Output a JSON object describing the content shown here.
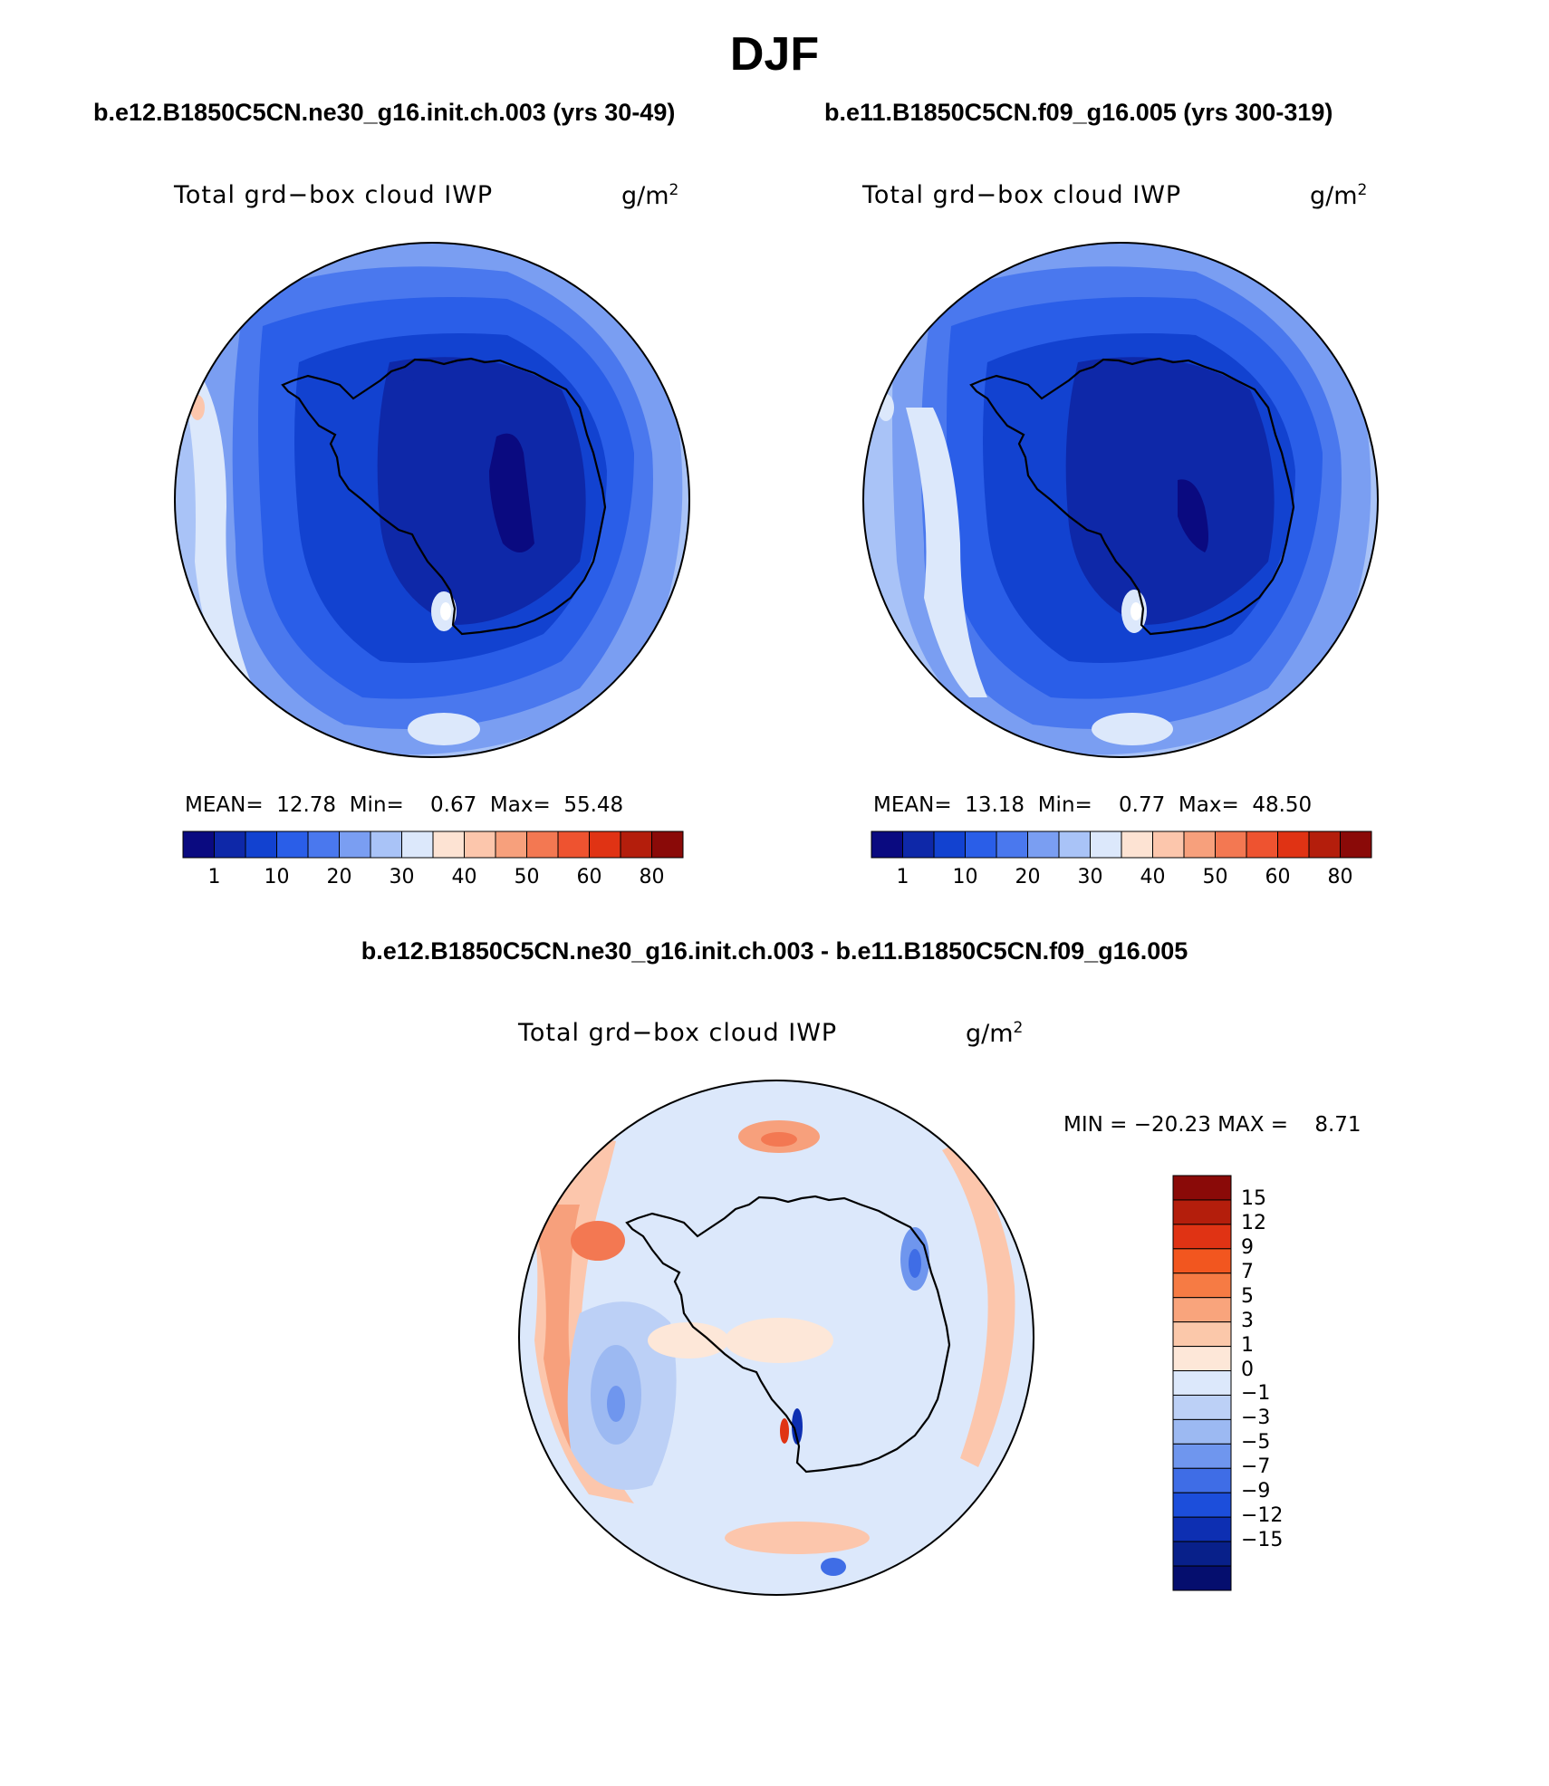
{
  "page": {
    "title": "DJF"
  },
  "panels": [
    {
      "case_title": "b.e12.B1850C5CN.ne30_g16.init.ch.003 (yrs 30-49)",
      "variable": "Total grd−box cloud IWP",
      "units": "g/m",
      "units_exp": "2",
      "stats": {
        "mean_label": "MEAN=",
        "mean": "12.78",
        "min_label": "Min=",
        "min": "0.67",
        "max_label": "Max=",
        "max": "55.48"
      }
    },
    {
      "case_title": "b.e11.B1850C5CN.f09_g16.005 (yrs 300-319)",
      "variable": "Total grd−box cloud IWP",
      "units": "g/m",
      "units_exp": "2",
      "stats": {
        "mean_label": "MEAN=",
        "mean": "13.18",
        "min_label": "Min=",
        "min": "0.77",
        "max_label": "Max=",
        "max": "48.50"
      }
    }
  ],
  "abs_colorbar": {
    "colors": [
      "#0a0a80",
      "#0e28a8",
      "#1242d0",
      "#2a5ee8",
      "#4a78ee",
      "#7a9ef2",
      "#a9c3f7",
      "#dce8fb",
      "#fde3d3",
      "#fcc6ac",
      "#f7a07c",
      "#f37852",
      "#ee5330",
      "#e03314",
      "#b41e0c",
      "#8a0a08"
    ],
    "ticks": [
      "1",
      "10",
      "20",
      "30",
      "40",
      "50",
      "60",
      "80"
    ]
  },
  "diff_panel": {
    "case_title": "b.e12.B1850C5CN.ne30_g16.init.ch.003 - b.e11.B1850C5CN.f09_g16.005",
    "variable": "Total grd−box cloud IWP",
    "units": "g/m",
    "units_exp": "2",
    "minmax": "MIN = −20.23 MAX =    8.71"
  },
  "diff_colorbar": {
    "colors_top_to_bottom": [
      "#8a0a08",
      "#b41e0c",
      "#e03314",
      "#f2561f",
      "#f67b44",
      "#f9a47c",
      "#fbc8aa",
      "#fde7d8",
      "#dce8fb",
      "#bcd0f6",
      "#9cb9f2",
      "#6f96ee",
      "#3f6de6",
      "#1c4edb",
      "#0d2fb2",
      "#08208a",
      "#050e6e"
    ],
    "labels": [
      "15",
      "12",
      "9",
      "7",
      "5",
      "3",
      "1",
      "0",
      "−1",
      "−3",
      "−5",
      "−7",
      "−9",
      "−12",
      "−15"
    ]
  }
}
